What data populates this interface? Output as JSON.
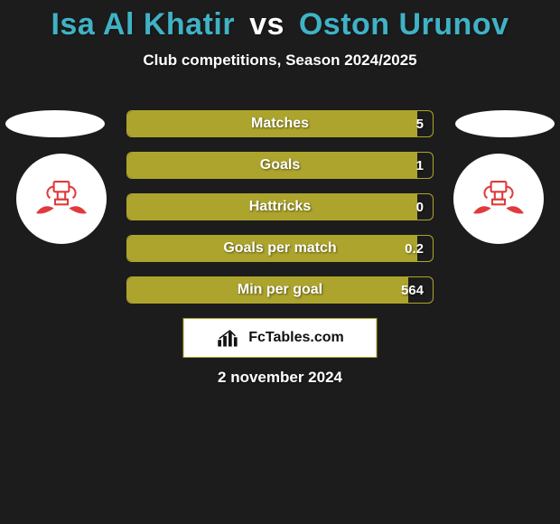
{
  "colors": {
    "background": "#1c1c1c",
    "accent": "#ada42d",
    "title_p1": "#3fb2c6",
    "title_vs": "#ffffff",
    "title_p2": "#3fb2c6",
    "ellipse": "#ffffff",
    "crest_icon": "#e03a3a",
    "bar_border": "#ada42d",
    "bar_fill": "#ada42d",
    "brand_border": "#ada42d",
    "brand_bg": "#ffffff",
    "brand_text": "#111111"
  },
  "title": {
    "player1": "Isa Al Khatir",
    "vs_label": "vs",
    "player2": "Oston Urunov"
  },
  "subtitle": "Club competitions, Season 2024/2025",
  "stats": [
    {
      "label": "Matches",
      "value": "5",
      "fill_pct": 95
    },
    {
      "label": "Goals",
      "value": "1",
      "fill_pct": 95
    },
    {
      "label": "Hattricks",
      "value": "0",
      "fill_pct": 95
    },
    {
      "label": "Goals per match",
      "value": "0.2",
      "fill_pct": 95
    },
    {
      "label": "Min per goal",
      "value": "564",
      "fill_pct": 92
    }
  ],
  "brand": "FcTables.com",
  "date": "2 november 2024"
}
